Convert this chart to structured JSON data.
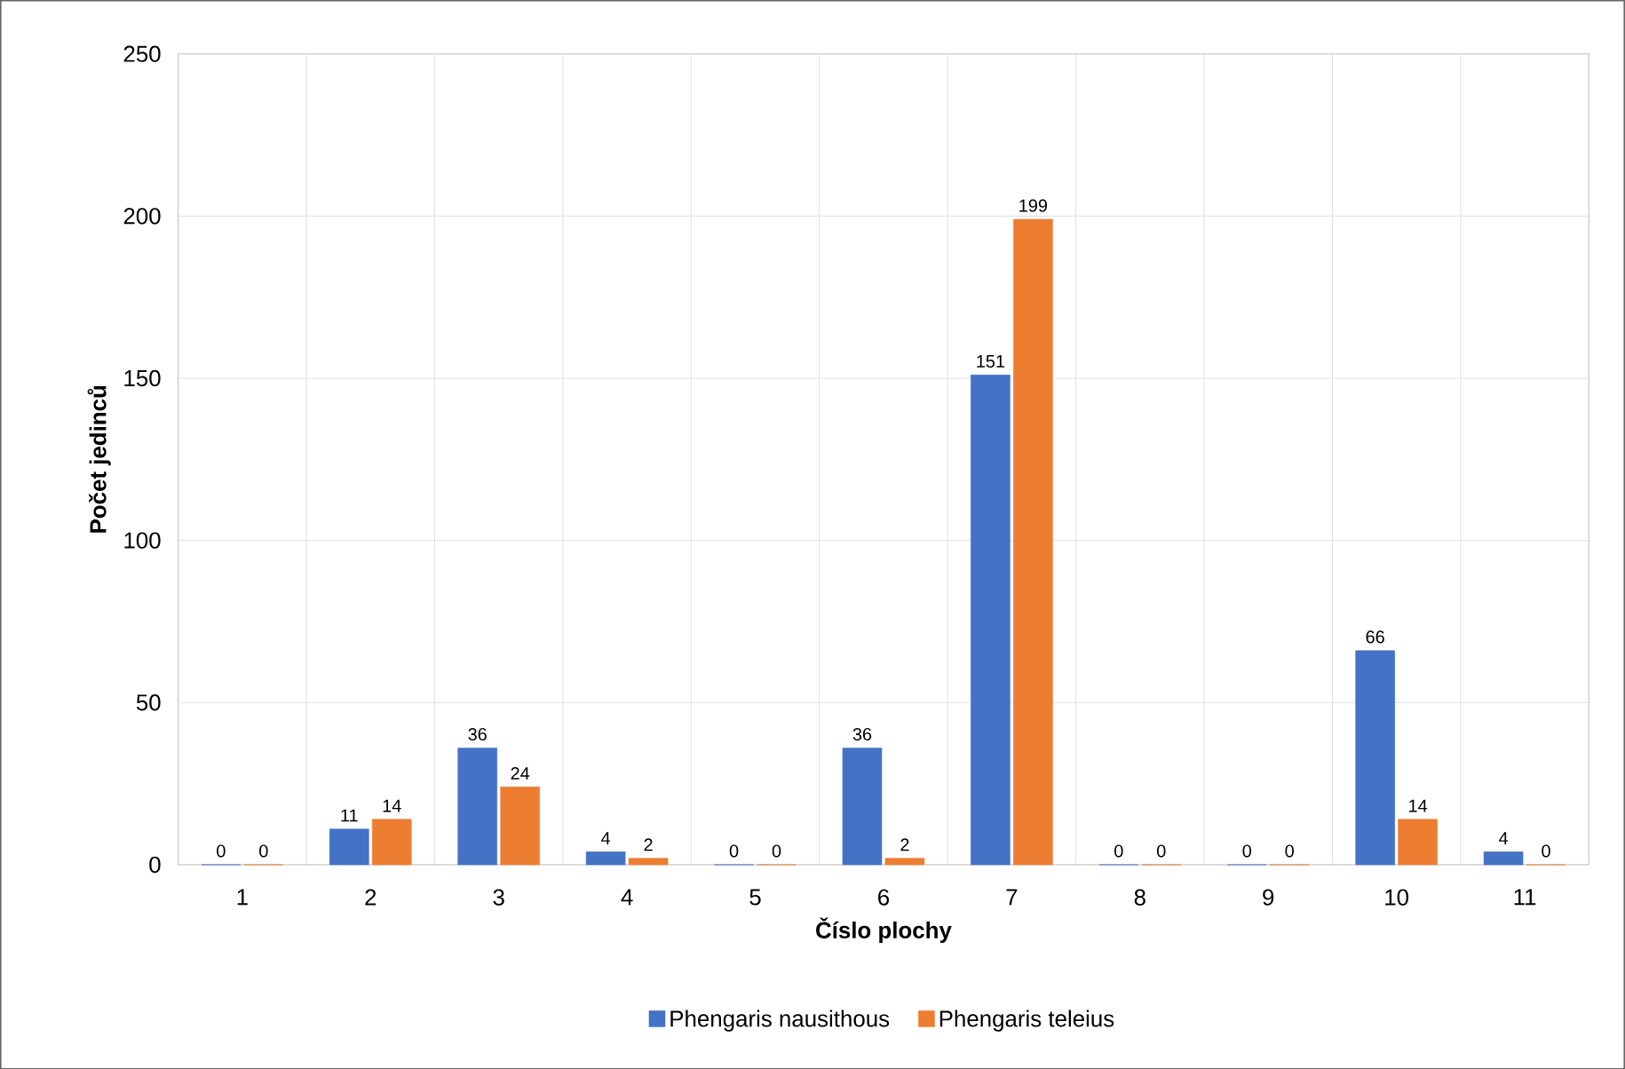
{
  "chart_data": {
    "type": "bar",
    "xlabel": "Číslo plochy",
    "ylabel": "Počet jedinců",
    "categories": [
      "1",
      "2",
      "3",
      "4",
      "5",
      "6",
      "7",
      "8",
      "9",
      "10",
      "11"
    ],
    "series": [
      {
        "name": "Phengaris nausithous",
        "color": "#4472c4",
        "values": [
          0,
          11,
          36,
          4,
          0,
          36,
          151,
          0,
          0,
          66,
          4
        ]
      },
      {
        "name": "Phengaris teleius",
        "color": "#ed7d31",
        "values": [
          0,
          14,
          24,
          2,
          0,
          2,
          199,
          0,
          0,
          14,
          0
        ]
      }
    ],
    "ylim": [
      0,
      250
    ],
    "yticks": [
      0,
      50,
      100,
      150,
      200,
      250
    ],
    "grid": true,
    "legend": "bottom",
    "data_labels": true
  }
}
